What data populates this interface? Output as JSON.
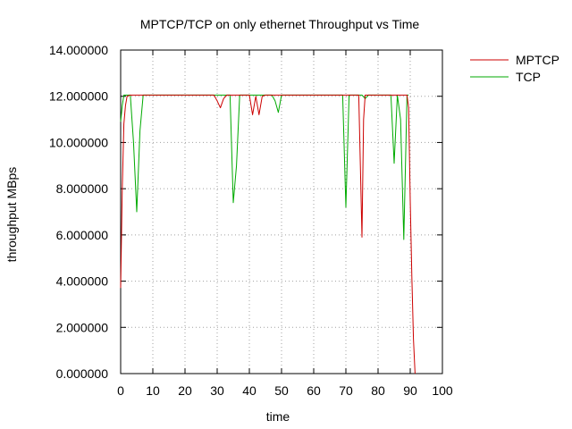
{
  "chart_data": {
    "type": "line",
    "title": "MPTCP/TCP on only ethernet Throughput vs Time",
    "xlabel": "time",
    "ylabel": "throughput MBps",
    "xlim": [
      0,
      100
    ],
    "ylim": [
      0,
      14
    ],
    "grid": true,
    "legend_placement": "outside-right-top",
    "x_ticks": [
      0,
      10,
      20,
      30,
      40,
      50,
      60,
      70,
      80,
      90,
      100
    ],
    "x_tick_labels": [
      "0",
      "10",
      "20",
      "30",
      "40",
      "50",
      "60",
      "70",
      "80",
      "90",
      "100"
    ],
    "y_ticks": [
      0,
      2,
      4,
      6,
      8,
      10,
      12,
      14
    ],
    "y_tick_labels": [
      "0.000000",
      "2.000000",
      "4.000000",
      "6.000000",
      "8.000000",
      "10.000000",
      "12.000000",
      "14.000000"
    ],
    "series": [
      {
        "name": "MPTCP",
        "color": "#cc0000",
        "x": [
          0,
          0.5,
          1,
          1.5,
          2,
          3,
          4,
          5,
          6,
          7,
          8,
          10,
          15,
          20,
          25,
          28,
          29,
          30,
          31,
          32,
          33,
          34,
          35,
          36,
          37,
          38,
          39,
          40,
          41,
          42,
          43,
          44,
          45,
          46,
          48,
          50,
          55,
          60,
          65,
          70,
          72,
          73,
          74,
          74.5,
          75,
          75.5,
          76,
          77,
          78,
          80,
          85,
          86,
          87,
          88,
          89,
          89.5,
          90,
          90.5,
          91,
          91.5
        ],
        "y": [
          3.7,
          8.0,
          10.8,
          11.6,
          12.0,
          12.05,
          12.05,
          12.05,
          12.05,
          12.05,
          12.05,
          12.05,
          12.05,
          12.05,
          12.05,
          12.05,
          12.05,
          11.8,
          11.5,
          11.9,
          12.05,
          12.05,
          12.05,
          12.05,
          12.05,
          12.05,
          12.05,
          12.05,
          11.2,
          12.0,
          11.2,
          12.0,
          12.05,
          12.05,
          12.05,
          12.05,
          12.05,
          12.05,
          12.05,
          12.05,
          12.05,
          12.05,
          12.05,
          9.0,
          5.9,
          11.0,
          12.05,
          12.05,
          12.05,
          12.05,
          12.05,
          12.05,
          12.05,
          12.05,
          12.05,
          11.5,
          7.5,
          4.2,
          1.5,
          0.0
        ]
      },
      {
        "name": "TCP",
        "color": "#00aa00",
        "x": [
          0,
          0.5,
          1,
          2,
          3,
          4,
          5,
          6,
          7,
          8,
          10,
          15,
          20,
          25,
          30,
          34,
          35,
          36,
          37,
          38,
          40,
          45,
          47,
          48,
          49,
          50,
          55,
          60,
          65,
          68,
          69,
          70,
          71,
          72,
          75,
          76,
          77,
          80,
          84,
          85,
          86,
          87,
          88,
          89,
          89.5
        ],
        "y": [
          10.9,
          11.6,
          12.05,
          12.05,
          12.05,
          10.0,
          7.0,
          10.5,
          12.05,
          12.05,
          12.05,
          12.05,
          12.05,
          12.05,
          12.05,
          12.05,
          7.4,
          9.0,
          12.05,
          12.05,
          12.05,
          12.05,
          12.05,
          11.8,
          11.3,
          12.05,
          12.05,
          12.05,
          12.05,
          12.05,
          12.05,
          7.2,
          12.05,
          12.05,
          12.05,
          11.9,
          12.05,
          12.05,
          12.05,
          9.1,
          12.05,
          11.0,
          5.8,
          12.05,
          12.05
        ]
      }
    ]
  }
}
